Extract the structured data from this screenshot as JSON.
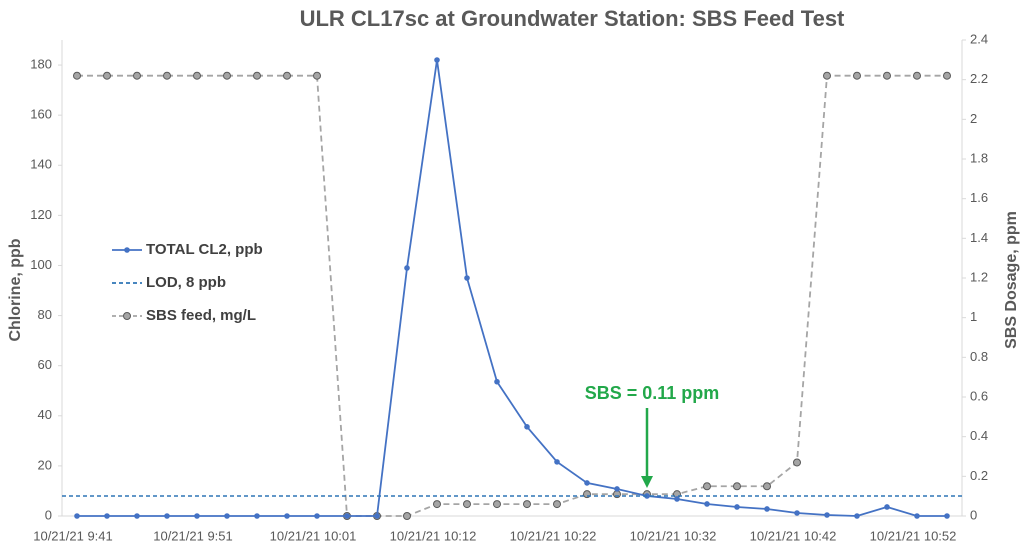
{
  "chart_data": {
    "type": "line",
    "title": "ULR CL17sc at Groundwater Station: SBS Feed Test",
    "y_label": "Chlorine, ppb",
    "y2_label": "SBS Dosage, ppm",
    "categories": [
      "10/21/21 9:41",
      null,
      null,
      null,
      "10/21/21 9:51",
      null,
      null,
      null,
      "10/21/21 10:01",
      null,
      null,
      null,
      "10/21/21 10:12",
      null,
      null,
      null,
      "10/21/21 10:22",
      null,
      null,
      null,
      "10/21/21 10:32",
      null,
      null,
      null,
      "10/21/21 10:42",
      null,
      null,
      null,
      "10/21/21 10:52",
      null
    ],
    "series": [
      {
        "name": "TOTAL CL2, ppb",
        "color": "#4472c4",
        "axis": "y",
        "dashed": false,
        "values": [
          0,
          0,
          0,
          0,
          0,
          0,
          0,
          0,
          0,
          0,
          0,
          99,
          182,
          95,
          53.6,
          35.6,
          21.6,
          13.2,
          10.8,
          8,
          6.8,
          4.8,
          3.6,
          2.8,
          1.2,
          0.4,
          0,
          3.6,
          0,
          0
        ]
      },
      {
        "name": "LOD, 8 ppb",
        "color": "#2e75b6",
        "axis": "y",
        "dashed": true,
        "constant": 8
      },
      {
        "name": "SBS feed, mg/L",
        "color": "#a5a5a5",
        "axis": "y2",
        "dashed": true,
        "values": [
          2.22,
          2.22,
          2.22,
          2.22,
          2.22,
          2.22,
          2.22,
          2.22,
          2.22,
          0,
          0,
          0,
          0.06,
          0.06,
          0.06,
          0.06,
          0.06,
          0.11,
          0.11,
          0.11,
          0.11,
          0.15,
          0.15,
          0.15,
          0.27,
          2.22,
          2.22,
          2.22,
          2.22,
          2.22
        ]
      }
    ],
    "ylim": [
      0,
      190
    ],
    "yticks": [
      0,
      20,
      40,
      60,
      80,
      100,
      120,
      140,
      160,
      180
    ],
    "y2lim": [
      0,
      2.4
    ],
    "y2ticks": [
      0,
      0.2,
      0.4,
      0.6,
      0.8,
      1,
      1.2,
      1.4,
      1.6,
      1.8,
      2,
      2.2,
      2.4
    ],
    "annotation": {
      "text": "SBS = 0.11 ppm",
      "color": "#22a84a"
    },
    "grid": false
  }
}
